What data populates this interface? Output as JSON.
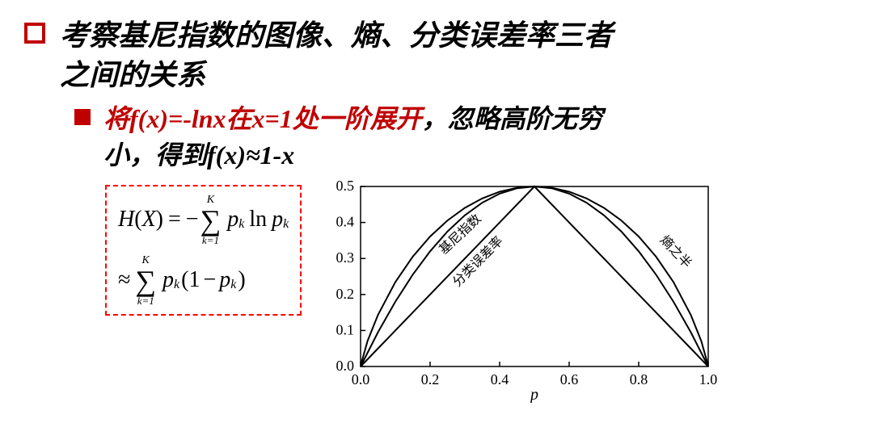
{
  "title_line1": "考察基尼指数的图像、熵、分类误差率三者",
  "title_line2": "之间的关系",
  "sub_red": "将f(x)=-lnx在x=1处一阶展开",
  "sub_black_1": "，忽略高阶无穷",
  "sub_black_2": "小，得到f(x)≈1-x",
  "formula": {
    "H": "H",
    "X": "X",
    "eq": "=",
    "neg": "−",
    "K": "K",
    "k1": "k=1",
    "p": "p",
    "ln": "ln",
    "approx": "≈",
    "one": "1",
    "lp": "(",
    "rp": ")",
    "minus": "−"
  },
  "chart": {
    "xlabel": "p",
    "xlim": [
      0.0,
      1.0
    ],
    "ylim": [
      0.0,
      0.5
    ],
    "xticks": [
      "0.0",
      "0.2",
      "0.4",
      "0.6",
      "0.8",
      "1.0"
    ],
    "yticks": [
      "0.0",
      "0.1",
      "0.2",
      "0.3",
      "0.4",
      "0.5"
    ],
    "bg": "#ffffff",
    "axis_color": "#000000",
    "curve_color": "#000000",
    "curve_width": 2,
    "labels": {
      "gini": "基尼指数",
      "err": "分类误差率",
      "half_ent": "熵之半"
    },
    "gini_points": [
      [
        0.0,
        0.0
      ],
      [
        0.05,
        0.095
      ],
      [
        0.1,
        0.18
      ],
      [
        0.15,
        0.255
      ],
      [
        0.2,
        0.32
      ],
      [
        0.25,
        0.375
      ],
      [
        0.3,
        0.42
      ],
      [
        0.35,
        0.455
      ],
      [
        0.4,
        0.48
      ],
      [
        0.45,
        0.495
      ],
      [
        0.5,
        0.5
      ],
      [
        0.55,
        0.495
      ],
      [
        0.6,
        0.48
      ],
      [
        0.65,
        0.455
      ],
      [
        0.7,
        0.42
      ],
      [
        0.75,
        0.375
      ],
      [
        0.8,
        0.32
      ],
      [
        0.85,
        0.255
      ],
      [
        0.9,
        0.18
      ],
      [
        0.95,
        0.095
      ],
      [
        1.0,
        0.0
      ]
    ],
    "err_points": [
      [
        0.0,
        0.0
      ],
      [
        0.5,
        0.5
      ],
      [
        1.0,
        0.0
      ]
    ],
    "ent_points": [
      [
        0.001,
        0.0055
      ],
      [
        0.02,
        0.0707
      ],
      [
        0.05,
        0.1431
      ],
      [
        0.1,
        0.2345
      ],
      [
        0.15,
        0.3049
      ],
      [
        0.2,
        0.361
      ],
      [
        0.25,
        0.4056
      ],
      [
        0.3,
        0.4406
      ],
      [
        0.35,
        0.4669
      ],
      [
        0.4,
        0.4855
      ],
      [
        0.45,
        0.4964
      ],
      [
        0.5,
        0.5
      ],
      [
        0.55,
        0.4964
      ],
      [
        0.6,
        0.4855
      ],
      [
        0.65,
        0.4669
      ],
      [
        0.7,
        0.4406
      ],
      [
        0.75,
        0.4056
      ],
      [
        0.8,
        0.361
      ],
      [
        0.85,
        0.3049
      ],
      [
        0.9,
        0.2345
      ],
      [
        0.95,
        0.1431
      ],
      [
        0.98,
        0.0707
      ],
      [
        0.999,
        0.0055
      ]
    ]
  }
}
